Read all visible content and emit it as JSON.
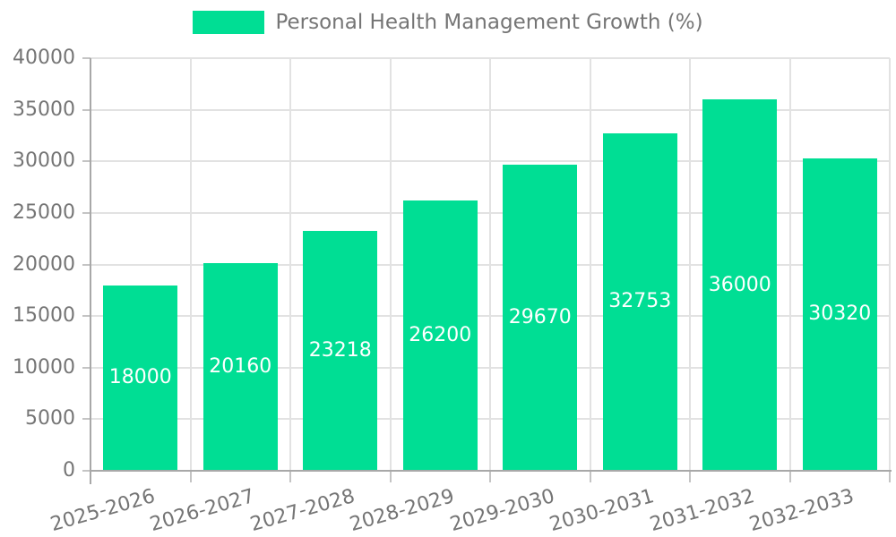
{
  "chart_data": {
    "type": "bar",
    "title": "Personal Health Management Growth (%)",
    "categories": [
      "2025-2026",
      "2026-2027",
      "2027-2028",
      "2028-2029",
      "2029-2030",
      "2030-2031",
      "2031-2032",
      "2032-2033"
    ],
    "series": [
      {
        "name": "Personal Health Management Growth (%)",
        "color": "#00DE94",
        "values": [
          18000,
          20160,
          23218,
          26200,
          29670,
          32753,
          36000,
          30320
        ]
      }
    ],
    "ylim": [
      0,
      40000
    ],
    "yticks": [
      0,
      5000,
      10000,
      15000,
      20000,
      25000,
      30000,
      35000,
      40000
    ],
    "xlabel": "",
    "ylabel": "",
    "grid": true,
    "legend_position": "top-center",
    "value_label_position": "inside-center",
    "x_tick_rotation_deg": -16
  },
  "colors": {
    "background": "#FFFFFF",
    "bar": "#00DE94",
    "axis_line": "#A8A8A8",
    "gridline": "#E2E2E2",
    "tick_mark": "#C4C4C4",
    "tick_text": "#757575",
    "value_label": "#FFFFFF"
  }
}
